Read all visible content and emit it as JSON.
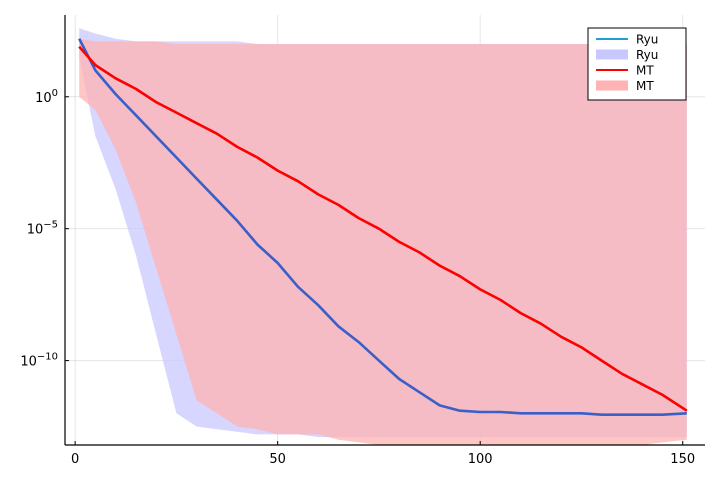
{
  "chart_data": {
    "type": "line",
    "title": "",
    "xlabel": "",
    "ylabel": "",
    "xlim": [
      -2.5,
      155.5
    ],
    "ylim_log10": [
      -13.2,
      3.1
    ],
    "y_scale": "log",
    "grid": true,
    "legend_placement": "top-right",
    "x_ticks": [
      0,
      50,
      100,
      150
    ],
    "x_tick_labels": [
      "0",
      "50",
      "100",
      "150"
    ],
    "y_ticks_log10": [
      0,
      -5,
      -10
    ],
    "y_tick_labels": [
      {
        "base": "10",
        "exp": "0"
      },
      {
        "base": "10",
        "exp": "−5"
      },
      {
        "base": "10",
        "exp": "−10"
      }
    ],
    "legend": [
      {
        "label": "Ryu",
        "kind": "line",
        "color": "#1f9fd6"
      },
      {
        "label": "Ryu",
        "kind": "band",
        "color": "#c8c8ff"
      },
      {
        "label": "MT",
        "kind": "line",
        "color": "#ff0000"
      },
      {
        "label": "MT",
        "kind": "band",
        "color": "#ffb3b3"
      }
    ],
    "series": [
      {
        "name": "Ryu",
        "line_color": "#3a5fc8",
        "band_color": "#c8c8ff",
        "x": [
          1,
          5,
          10,
          15,
          20,
          25,
          30,
          35,
          40,
          45,
          50,
          55,
          60,
          65,
          70,
          75,
          80,
          85,
          90,
          95,
          100,
          105,
          110,
          115,
          120,
          125,
          130,
          135,
          140,
          145,
          151
        ],
        "log10_mean": [
          2.2,
          1.0,
          0.1,
          -0.7,
          -1.5,
          -2.3,
          -3.1,
          -3.9,
          -4.7,
          -5.6,
          -6.3,
          -7.2,
          -7.9,
          -8.7,
          -9.3,
          -10.0,
          -10.7,
          -11.2,
          -11.7,
          -11.9,
          -11.95,
          -11.95,
          -12.0,
          -12.0,
          -12.0,
          -12.0,
          -12.05,
          -12.05,
          -12.05,
          -12.05,
          -12.0
        ],
        "log10_lower": [
          1.5,
          -1.5,
          -3.5,
          -6.0,
          -9.0,
          -12.0,
          -12.5,
          -12.6,
          -12.7,
          -12.8,
          -12.8,
          -12.8,
          -12.9,
          -12.9,
          -12.9,
          -12.9,
          -12.9,
          -12.9,
          -12.9,
          -12.9,
          -12.9,
          -12.9,
          -12.9,
          -12.9,
          -12.9,
          -12.9,
          -12.9,
          -12.9,
          -12.9,
          -12.9,
          -12.9
        ],
        "log10_upper": [
          2.6,
          2.4,
          2.2,
          2.1,
          2.1,
          2.1,
          2.1,
          2.1,
          2.1,
          2.0,
          2.0,
          2.0,
          2.0,
          2.0,
          2.0,
          2.0,
          2.0,
          2.0,
          2.0,
          2.0,
          2.0,
          2.0,
          2.0,
          2.0,
          2.0,
          2.0,
          2.0,
          2.0,
          2.0,
          2.0,
          2.0
        ]
      },
      {
        "name": "MT",
        "line_color": "#ff0000",
        "band_color": "#ffb3b3",
        "x": [
          1,
          5,
          10,
          15,
          20,
          25,
          30,
          35,
          40,
          45,
          50,
          55,
          60,
          65,
          70,
          75,
          80,
          85,
          90,
          95,
          100,
          105,
          110,
          115,
          120,
          125,
          130,
          135,
          140,
          145,
          151
        ],
        "log10_mean": [
          1.9,
          1.2,
          0.7,
          0.3,
          -0.2,
          -0.6,
          -1.0,
          -1.4,
          -1.9,
          -2.3,
          -2.8,
          -3.2,
          -3.7,
          -4.1,
          -4.6,
          -5.0,
          -5.5,
          -5.9,
          -6.4,
          -6.8,
          -7.3,
          -7.7,
          -8.2,
          -8.6,
          -9.1,
          -9.5,
          -10.0,
          -10.5,
          -10.9,
          -11.3,
          -11.9
        ],
        "log10_lower": [
          0.0,
          -0.5,
          -2.0,
          -4.0,
          -6.5,
          -9.0,
          -11.5,
          -12.0,
          -12.5,
          -12.6,
          -12.8,
          -12.8,
          -12.8,
          -13.0,
          -13.1,
          -13.2,
          -13.2,
          -13.2,
          -13.2,
          -13.2,
          -13.2,
          -13.2,
          -13.2,
          -13.2,
          -13.2,
          -13.2,
          -13.2,
          -13.2,
          -13.2,
          -13.1,
          -13.0
        ],
        "log10_upper": [
          2.2,
          2.1,
          2.1,
          2.1,
          2.1,
          2.0,
          2.0,
          2.0,
          2.0,
          2.0,
          2.0,
          2.0,
          2.0,
          2.0,
          2.0,
          2.0,
          2.0,
          2.0,
          2.0,
          2.0,
          2.0,
          2.0,
          2.0,
          2.0,
          2.0,
          2.0,
          2.0,
          2.0,
          2.0,
          2.0,
          2.0
        ]
      }
    ]
  }
}
